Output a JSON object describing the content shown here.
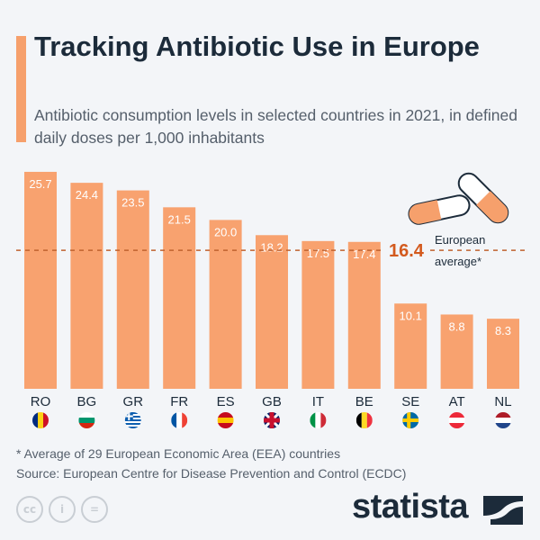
{
  "header": {
    "title": "Tracking Antibiotic Use in Europe",
    "subtitle": "Antibiotic consumption levels in selected countries in 2021, in defined daily doses per 1,000 inhabitants"
  },
  "chart_data": {
    "type": "bar",
    "categories": [
      "RO",
      "BG",
      "GR",
      "FR",
      "ES",
      "GB",
      "IT",
      "BE",
      "SE",
      "AT",
      "NL"
    ],
    "values": [
      25.7,
      24.4,
      23.5,
      21.5,
      20.0,
      18.2,
      17.5,
      17.4,
      10.1,
      8.8,
      8.3
    ],
    "value_labels": [
      "25.7",
      "24.4",
      "23.5",
      "21.5",
      "20.0",
      "18.2",
      "17.5",
      "17.4",
      "10.1",
      "8.8",
      "8.3"
    ],
    "reference_line": {
      "value": 16.4,
      "value_label": "16.4",
      "label_line1": "European",
      "label_line2": "average*"
    },
    "bar_color": "#f8a26f",
    "reference_color": "#d35a1e",
    "ylim": [
      0,
      25.7
    ],
    "grid": false,
    "legend": "none"
  },
  "footer": {
    "note": "* Average of 29 European Economic Area (EEA) countries",
    "source": "Source: European Centre for Disease Prevention and Control (ECDC)",
    "brand": "statista",
    "cc_icons": [
      "cc",
      "by",
      "nd"
    ]
  }
}
